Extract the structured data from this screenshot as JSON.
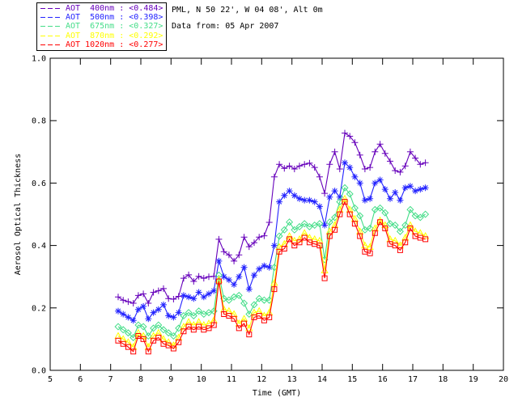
{
  "header": {
    "station_line": "PML, N 50 22', W 04 08', Alt 0m",
    "date_line": "Data from: 05 Apr 2007"
  },
  "legend": {
    "entries": [
      {
        "id": "400nm",
        "label": "AOT  400nm : <0.484>",
        "mean": "0.484",
        "color": "#6600bb"
      },
      {
        "id": "500nm",
        "label": "AOT  500nm : <0.398>",
        "mean": "0.398",
        "color": "#2222ff"
      },
      {
        "id": "675nm",
        "label": "AOT  675nm : <0.327>",
        "mean": "0.327",
        "color": "#44dd88"
      },
      {
        "id": "870nm",
        "label": "AOT  870nm : <0.292>",
        "mean": "0.292",
        "color": "#ffff00"
      },
      {
        "id": "1020nm",
        "label": "AOT 1020nm : <0.277>",
        "mean": "0.277",
        "color": "#ff0000"
      }
    ]
  },
  "chart_data": {
    "type": "line",
    "title": "",
    "xlabel": "Time (GMT)",
    "ylabel": "Aerosol Optical Thickness",
    "xlim": [
      5,
      20
    ],
    "ylim": [
      0.0,
      1.0
    ],
    "xticks": [
      5,
      6,
      7,
      8,
      9,
      10,
      11,
      12,
      13,
      14,
      15,
      16,
      17,
      18,
      19,
      20
    ],
    "yticks": [
      0.0,
      0.2,
      0.4,
      0.6,
      0.8,
      1.0
    ],
    "grid": false,
    "legend_position": "top-left",
    "x_hours": [
      7.25,
      7.417,
      7.583,
      7.75,
      7.917,
      8.083,
      8.25,
      8.417,
      8.583,
      8.75,
      8.917,
      9.083,
      9.25,
      9.417,
      9.583,
      9.75,
      9.917,
      10.083,
      10.25,
      10.417,
      10.583,
      10.75,
      10.917,
      11.083,
      11.25,
      11.417,
      11.583,
      11.75,
      11.917,
      12.083,
      12.25,
      12.417,
      12.583,
      12.75,
      12.917,
      13.083,
      13.25,
      13.417,
      13.583,
      13.75,
      13.917,
      14.083,
      14.25,
      14.417,
      14.583,
      14.75,
      14.917,
      15.083,
      15.25,
      15.417,
      15.583,
      15.75,
      15.917,
      16.083,
      16.25,
      16.417,
      16.583,
      16.75,
      16.917,
      17.083,
      17.25,
      17.417
    ],
    "series": [
      {
        "name": "AOT 400nm",
        "wavelength_nm": 400,
        "mean_aot": 0.484,
        "color": "#6600bb",
        "marker": "plus",
        "values": [
          0.235,
          0.225,
          0.22,
          0.215,
          0.24,
          0.245,
          0.215,
          0.25,
          0.255,
          0.262,
          0.23,
          0.228,
          0.237,
          0.295,
          0.306,
          0.285,
          0.301,
          0.295,
          0.3,
          0.301,
          0.42,
          0.38,
          0.37,
          0.35,
          0.37,
          0.427,
          0.396,
          0.409,
          0.427,
          0.431,
          0.474,
          0.62,
          0.66,
          0.647,
          0.655,
          0.645,
          0.655,
          0.66,
          0.664,
          0.65,
          0.62,
          0.567,
          0.66,
          0.7,
          0.645,
          0.76,
          0.75,
          0.73,
          0.69,
          0.645,
          0.65,
          0.7,
          0.725,
          0.695,
          0.67,
          0.64,
          0.635,
          0.655,
          0.7,
          0.68,
          0.66,
          0.665
        ]
      },
      {
        "name": "AOT 500nm",
        "wavelength_nm": 500,
        "mean_aot": 0.398,
        "color": "#2222ff",
        "marker": "asterisk",
        "values": [
          0.19,
          0.18,
          0.17,
          0.16,
          0.195,
          0.205,
          0.165,
          0.185,
          0.195,
          0.21,
          0.175,
          0.17,
          0.185,
          0.24,
          0.235,
          0.23,
          0.25,
          0.235,
          0.245,
          0.255,
          0.35,
          0.3,
          0.29,
          0.275,
          0.3,
          0.33,
          0.26,
          0.305,
          0.325,
          0.335,
          0.33,
          0.4,
          0.54,
          0.56,
          0.575,
          0.56,
          0.55,
          0.545,
          0.545,
          0.54,
          0.525,
          0.465,
          0.555,
          0.575,
          0.555,
          0.665,
          0.65,
          0.62,
          0.6,
          0.545,
          0.55,
          0.6,
          0.61,
          0.58,
          0.55,
          0.57,
          0.545,
          0.585,
          0.59,
          0.575,
          0.58,
          0.585
        ]
      },
      {
        "name": "AOT 675nm",
        "wavelength_nm": 675,
        "mean_aot": 0.327,
        "color": "#44dd88",
        "marker": "diamond",
        "values": [
          0.14,
          0.13,
          0.12,
          0.105,
          0.145,
          0.14,
          0.11,
          0.135,
          0.145,
          0.13,
          0.12,
          0.11,
          0.135,
          0.175,
          0.185,
          0.175,
          0.19,
          0.18,
          0.185,
          0.19,
          0.305,
          0.23,
          0.225,
          0.235,
          0.24,
          0.215,
          0.18,
          0.21,
          0.23,
          0.225,
          0.225,
          0.33,
          0.43,
          0.45,
          0.475,
          0.45,
          0.46,
          0.47,
          0.46,
          0.465,
          0.47,
          0.355,
          0.475,
          0.49,
          0.54,
          0.585,
          0.565,
          0.52,
          0.495,
          0.45,
          0.455,
          0.515,
          0.52,
          0.505,
          0.47,
          0.465,
          0.445,
          0.465,
          0.515,
          0.495,
          0.49,
          0.5
        ]
      },
      {
        "name": "AOT 870nm",
        "wavelength_nm": 870,
        "mean_aot": 0.292,
        "color": "#ffff00",
        "marker": "triangle",
        "values": [
          0.11,
          0.1,
          0.09,
          0.075,
          0.12,
          0.11,
          0.075,
          0.11,
          0.12,
          0.1,
          0.09,
          0.08,
          0.105,
          0.14,
          0.155,
          0.145,
          0.155,
          0.145,
          0.15,
          0.16,
          0.29,
          0.195,
          0.19,
          0.18,
          0.15,
          0.165,
          0.135,
          0.185,
          0.19,
          0.175,
          0.185,
          0.28,
          0.395,
          0.405,
          0.43,
          0.415,
          0.42,
          0.44,
          0.425,
          0.42,
          0.415,
          0.32,
          0.445,
          0.465,
          0.515,
          0.55,
          0.515,
          0.485,
          0.445,
          0.4,
          0.395,
          0.455,
          0.48,
          0.465,
          0.42,
          0.415,
          0.4,
          0.425,
          0.465,
          0.445,
          0.44,
          0.43
        ]
      },
      {
        "name": "AOT 1020nm",
        "wavelength_nm": 1020,
        "mean_aot": 0.277,
        "color": "#ff0000",
        "marker": "square",
        "values": [
          0.095,
          0.085,
          0.075,
          0.06,
          0.11,
          0.1,
          0.06,
          0.095,
          0.105,
          0.085,
          0.08,
          0.07,
          0.09,
          0.125,
          0.14,
          0.13,
          0.14,
          0.13,
          0.135,
          0.145,
          0.285,
          0.18,
          0.175,
          0.165,
          0.135,
          0.15,
          0.115,
          0.17,
          0.175,
          0.16,
          0.17,
          0.26,
          0.38,
          0.39,
          0.42,
          0.4,
          0.41,
          0.425,
          0.41,
          0.405,
          0.4,
          0.295,
          0.43,
          0.45,
          0.5,
          0.54,
          0.5,
          0.47,
          0.43,
          0.38,
          0.375,
          0.44,
          0.475,
          0.455,
          0.405,
          0.4,
          0.385,
          0.41,
          0.455,
          0.43,
          0.425,
          0.42
        ]
      }
    ]
  }
}
